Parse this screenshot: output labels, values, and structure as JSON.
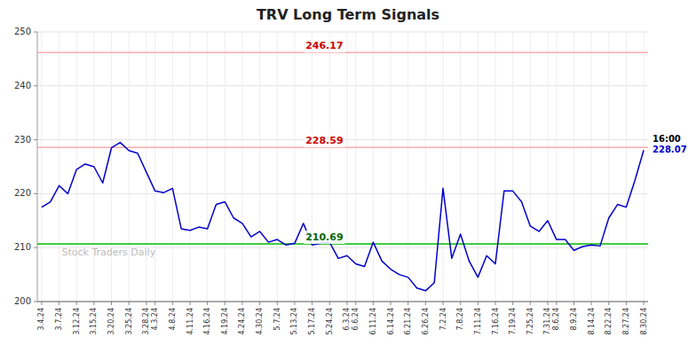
{
  "chart_data": {
    "type": "line",
    "title": "TRV Long Term Signals",
    "categories": [
      "3.4.24",
      null,
      "3.7.24",
      null,
      "3.12.24",
      null,
      "3.15.24",
      null,
      "3.20.24",
      null,
      "3.25.24",
      null,
      "3.28.24",
      "4.3.24",
      null,
      "4.8.24",
      null,
      "4.11.24",
      null,
      "4.16.24",
      null,
      "4.19.24",
      null,
      "4.24.24",
      null,
      "4.30.24",
      null,
      "5.7.24",
      null,
      "5.13.24",
      null,
      "5.17.24",
      null,
      "5.24.24",
      null,
      "6.3.24",
      "6.6.24",
      null,
      "6.11.24",
      null,
      "6.14.24",
      null,
      "6.21.24",
      null,
      "6.26.24",
      null,
      "7.2.24",
      null,
      "7.8.24",
      null,
      "7.11.24",
      null,
      "7.16.24",
      null,
      "7.19.24",
      null,
      "7.25.24",
      null,
      "7.31.24",
      "8.6.24",
      null,
      "8.9.24",
      null,
      "8.14.24",
      null,
      "8.22.24",
      null,
      "8.27.24",
      null,
      "8.30.24"
    ],
    "values": [
      217.5,
      218.5,
      221.5,
      220.0,
      224.5,
      225.5,
      225.0,
      222.0,
      228.5,
      229.5,
      228.0,
      227.5,
      224.0,
      220.5,
      220.2,
      221.0,
      213.5,
      213.2,
      213.8,
      213.5,
      218.0,
      218.5,
      215.5,
      214.5,
      212.0,
      213.0,
      211.0,
      211.5,
      210.5,
      210.8,
      214.5,
      210.5,
      210.8,
      211.0,
      208.0,
      208.5,
      207.0,
      206.5,
      211.0,
      207.5,
      206.0,
      205.0,
      204.5,
      202.5,
      202.0,
      203.5,
      221.0,
      208.0,
      212.5,
      207.5,
      204.5,
      208.5,
      207.0,
      220.5,
      220.5,
      218.5,
      214.0,
      213.0,
      215.0,
      211.5,
      211.5,
      209.5,
      210.2,
      210.5,
      210.3,
      215.5,
      218.0,
      217.5,
      222.5,
      228.07
    ],
    "color": "#0000cc",
    "hlines": [
      {
        "value": 246.17,
        "label": "246.17",
        "color": "#ffaaaa",
        "label_color": "#cc0000"
      },
      {
        "value": 228.59,
        "label": "228.59",
        "color": "#ffaaaa",
        "label_color": "#cc0000"
      },
      {
        "value": 210.69,
        "label": "210.69",
        "color": "#00bb00",
        "label_color": "#006600"
      }
    ],
    "last_point": {
      "label": "16:00",
      "value": 228.07,
      "value_label": "228.07"
    },
    "watermark": "Stock Traders Daily",
    "ylim": [
      200,
      250
    ],
    "yticks": [
      200,
      210,
      220,
      230,
      240,
      250
    ],
    "grid": true
  }
}
